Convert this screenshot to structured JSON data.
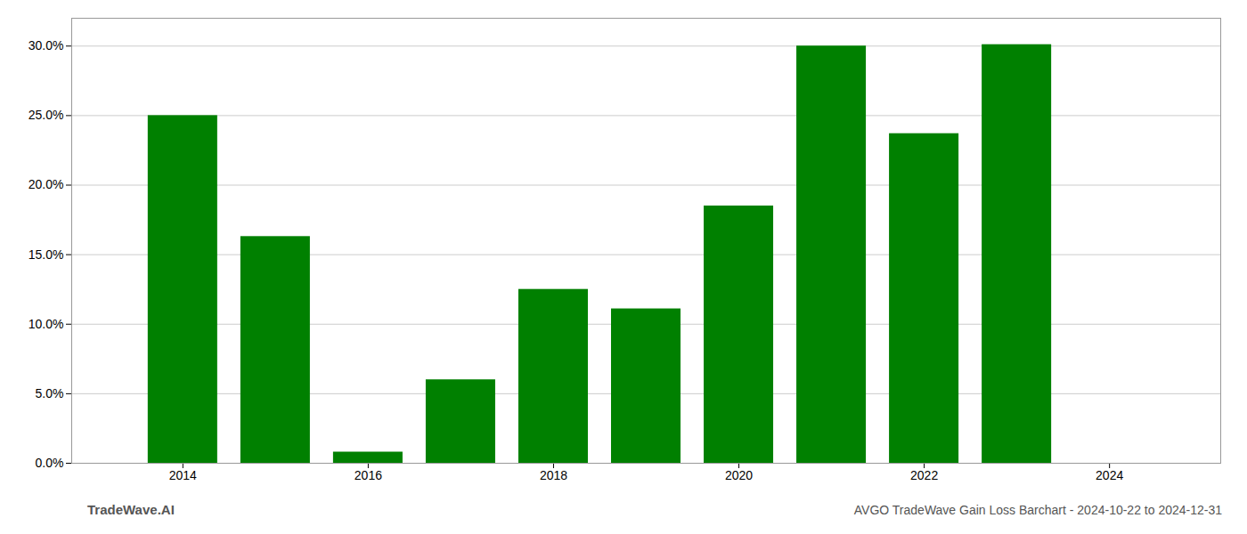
{
  "chart_data": {
    "type": "bar",
    "title": "AVGO TradeWave Gain Loss Barchart - 2024-10-22 to 2024-12-31",
    "annotations": [
      "TradeWave.AI"
    ],
    "x": [
      2014,
      2015,
      2016,
      2017,
      2018,
      2019,
      2020,
      2021,
      2022,
      2023
    ],
    "values": [
      0.25,
      0.163,
      0.008,
      0.06,
      0.125,
      0.111,
      0.185,
      0.3,
      0.237,
      0.301
    ],
    "color": "#008000",
    "xlim": [
      2012.8,
      2025.2
    ],
    "xticks": [
      2014,
      2016,
      2018,
      2020,
      2022,
      2024
    ],
    "ylim": [
      0.0,
      0.32
    ],
    "yticks": [
      {
        "value": 0.0,
        "label": "0.0%"
      },
      {
        "value": 0.05,
        "label": "5.0%"
      },
      {
        "value": 0.1,
        "label": "10.0%"
      },
      {
        "value": 0.15,
        "label": "15.0%"
      },
      {
        "value": 0.2,
        "label": "20.0%"
      },
      {
        "value": 0.25,
        "label": "25.0%"
      },
      {
        "value": 0.3,
        "label": "30.0%"
      }
    ],
    "grid": true
  }
}
